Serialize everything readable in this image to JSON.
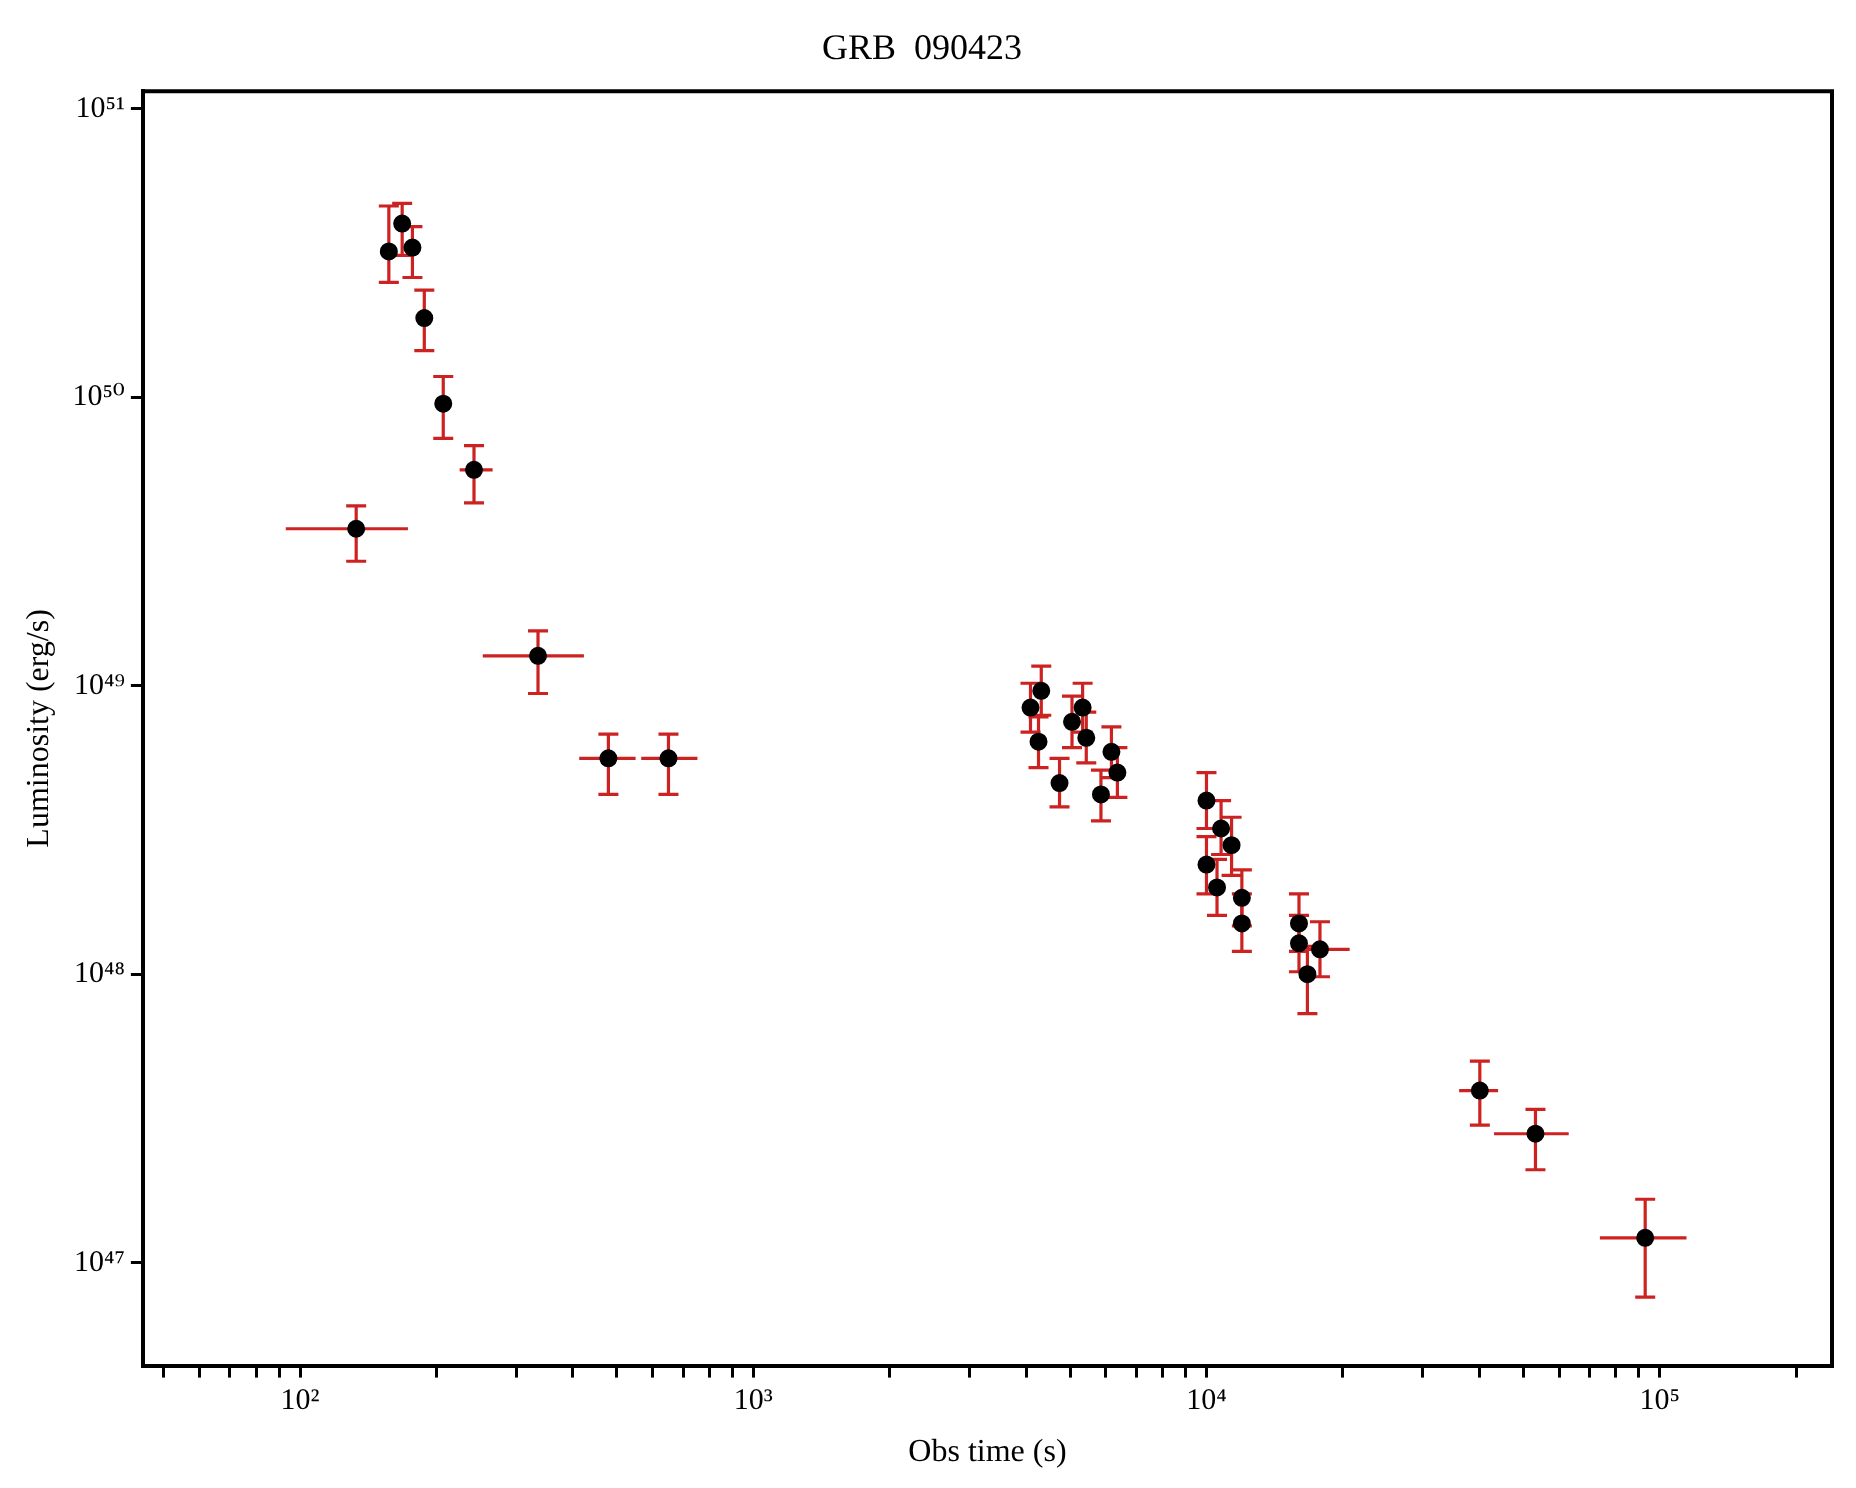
{
  "chart_data": {
    "type": "scatter",
    "title": "GRB  090423",
    "xlabel": "Obs time (s)",
    "ylabel": "Luminosity (erg/s)",
    "log": "xy",
    "grid": false,
    "legend": false,
    "marker": "circle",
    "xlim": [
      45,
      240000
    ],
    "ylim": [
      4.4e+46,
      1.15e+51
    ],
    "xticks": [
      {
        "value": 50,
        "label": null
      },
      {
        "value": 60,
        "label": null
      },
      {
        "value": 70,
        "label": null
      },
      {
        "value": 80,
        "label": null
      },
      {
        "value": 90,
        "label": null
      },
      {
        "value": 100,
        "label": "10²"
      },
      {
        "value": 200,
        "label": null
      },
      {
        "value": 300,
        "label": null
      },
      {
        "value": 400,
        "label": null
      },
      {
        "value": 500,
        "label": null
      },
      {
        "value": 600,
        "label": null
      },
      {
        "value": 700,
        "label": null
      },
      {
        "value": 800,
        "label": null
      },
      {
        "value": 900,
        "label": null
      },
      {
        "value": 1000,
        "label": "10³"
      },
      {
        "value": 2000,
        "label": null
      },
      {
        "value": 3000,
        "label": null
      },
      {
        "value": 4000,
        "label": null
      },
      {
        "value": 5000,
        "label": null
      },
      {
        "value": 6000,
        "label": null
      },
      {
        "value": 7000,
        "label": null
      },
      {
        "value": 8000,
        "label": null
      },
      {
        "value": 9000,
        "label": null
      },
      {
        "value": 10000,
        "label": "10⁴"
      },
      {
        "value": 20000,
        "label": null
      },
      {
        "value": 30000,
        "label": null
      },
      {
        "value": 40000,
        "label": null
      },
      {
        "value": 50000,
        "label": null
      },
      {
        "value": 60000,
        "label": null
      },
      {
        "value": 70000,
        "label": null
      },
      {
        "value": 80000,
        "label": null
      },
      {
        "value": 90000,
        "label": null
      },
      {
        "value": 100000,
        "label": "10⁵"
      },
      {
        "value": 200000,
        "label": null
      }
    ],
    "yticks": [
      {
        "value": 1e+47,
        "label": "10⁴⁷"
      },
      {
        "value": 1e+48,
        "label": "10⁴⁸"
      },
      {
        "value": 1e+49,
        "label": "10⁴⁹"
      },
      {
        "value": 1e+50,
        "label": "10⁵⁰"
      },
      {
        "value": 1e+51,
        "label": "10⁵¹"
      }
    ],
    "series": [
      {
        "color": "#000000",
        "x": [
          133,
          157,
          168,
          177,
          188,
          207,
          242,
          335,
          479,
          650,
          4090,
          4320,
          4260,
          4740,
          5050,
          5430,
          5330,
          5850,
          6360,
          6170,
          10000,
          10000,
          10550,
          11360,
          11970,
          11970,
          10770,
          16000,
          16000,
          17800,
          16700,
          40100,
          53200,
          92900
        ],
        "values": [
          3.5e+49,
          3.2e+50,
          4e+50,
          3.3e+50,
          1.88e+50,
          9.5e+49,
          5.6e+49,
          1.27e+49,
          5.6e+48,
          5.6e+48,
          8.4e+48,
          9.6e+48,
          6.4e+48,
          4.6e+48,
          7.5e+48,
          6.6e+48,
          8.4e+48,
          4.2e+48,
          5e+48,
          5.9e+48,
          4e+48,
          2.4e+48,
          2e+48,
          2.8e+48,
          1.84e+48,
          1.5e+48,
          3.2e+48,
          1.5e+48,
          1.28e+48,
          1.22e+48,
          1e+48,
          3.95e+47,
          2.8e+47,
          1.22e+47
        ],
        "errors": [
          [
            2.7e+49,
            4.2e+49
          ],
          [
            2.5e+50,
            4.6e+50
          ],
          [
            3.1e+50,
            4.7e+50
          ],
          [
            2.6e+50,
            3.9e+50
          ],
          [
            1.45e+50,
            2.35e+50
          ],
          [
            7.2e+49,
            1.18e+50
          ],
          [
            4.3e+49,
            6.8e+49
          ],
          [
            9.4e+48,
            1.55e+49
          ],
          [
            4.2e+48,
            6.8e+48
          ],
          [
            4.2e+48,
            6.8e+48
          ],
          [
            6.9e+48,
            1.02e+49
          ],
          [
            7.9e+48,
            1.17e+49
          ],
          [
            5.2e+48,
            7.8e+48
          ],
          [
            3.8e+48,
            5.6e+48
          ],
          [
            6.1e+48,
            9.2e+48
          ],
          [
            5.4e+48,
            8.1e+48
          ],
          [
            6.9e+48,
            1.02e+49
          ],
          [
            3.4e+48,
            5.1e+48
          ],
          [
            4.1e+48,
            6.1e+48
          ],
          [
            4.8e+48,
            7.2e+48
          ],
          [
            3.2e+48,
            5e+48
          ],
          [
            1.9e+48,
            3e+48
          ],
          [
            1.6e+48,
            2.5e+48
          ],
          [
            2.2e+48,
            3.5e+48
          ],
          [
            1.47e+48,
            2.3e+48
          ],
          [
            1.2e+48,
            1.9e+48
          ],
          [
            2.6e+48,
            4e+48
          ],
          [
            1.2e+48,
            1.9e+48
          ],
          [
            1.02e+48,
            1.6e+48
          ],
          [
            9.8e+47,
            1.52e+48
          ],
          [
            7.3e+47,
            1.25e+48
          ],
          [
            3e+47,
            5e+47
          ],
          [
            2.1e+47,
            3.4e+47
          ],
          [
            7.6e+46,
            1.66e+47
          ]
        ],
        "xerrors": [
          [
            93,
            173
          ],
          null,
          null,
          null,
          null,
          null,
          [
            225,
            266
          ],
          [
            253,
            423
          ],
          [
            413,
            550
          ],
          [
            566,
            753
          ],
          null,
          null,
          null,
          null,
          null,
          null,
          null,
          null,
          null,
          null,
          null,
          null,
          null,
          null,
          null,
          null,
          null,
          null,
          null,
          [
            16700,
            20700
          ],
          null,
          [
            36100,
            44000
          ],
          [
            43100,
            63000
          ],
          [
            73800,
            114600
          ]
        ]
      }
    ]
  }
}
